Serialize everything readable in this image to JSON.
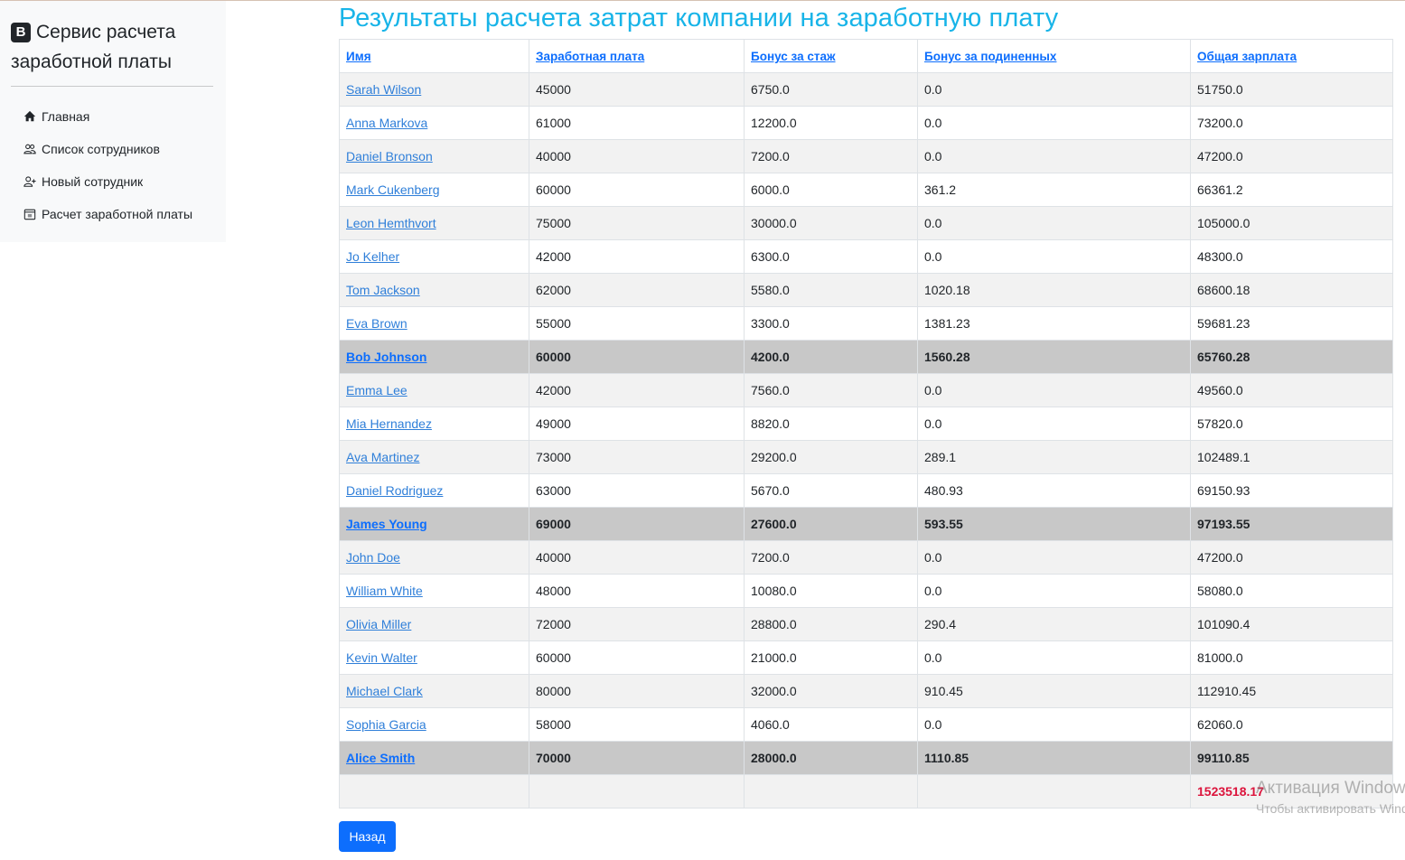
{
  "sidebar": {
    "brand_badge": "B",
    "brand_title": "Сервис расчета заработной платы",
    "items": [
      {
        "label": "Главная",
        "icon": "home-icon"
      },
      {
        "label": "Список сотрудников",
        "icon": "people-icon"
      },
      {
        "label": "Новый сотрудник",
        "icon": "person-add-icon"
      },
      {
        "label": "Расчет заработной платы",
        "icon": "calendar-icon"
      }
    ]
  },
  "page": {
    "title": "Результаты расчета затрат компании на заработную плату"
  },
  "table": {
    "headers": [
      "Имя",
      "Заработная плата",
      "Бонус за стаж",
      "Бонус за подиненных",
      "Общая зарплата"
    ],
    "rows": [
      {
        "name": "Sarah Wilson",
        "salary": "45000",
        "seniority": "6750.0",
        "subordinates": "0.0",
        "total": "51750.0",
        "highlight": false
      },
      {
        "name": "Anna Markova",
        "salary": "61000",
        "seniority": "12200.0",
        "subordinates": "0.0",
        "total": "73200.0",
        "highlight": false
      },
      {
        "name": "Daniel Bronson",
        "salary": "40000",
        "seniority": "7200.0",
        "subordinates": "0.0",
        "total": "47200.0",
        "highlight": false
      },
      {
        "name": "Mark Cukenberg",
        "salary": "60000",
        "seniority": "6000.0",
        "subordinates": "361.2",
        "total": "66361.2",
        "highlight": false
      },
      {
        "name": "Leon Hemthvort",
        "salary": "75000",
        "seniority": "30000.0",
        "subordinates": "0.0",
        "total": "105000.0",
        "highlight": false
      },
      {
        "name": "Jo Kelher",
        "salary": "42000",
        "seniority": "6300.0",
        "subordinates": "0.0",
        "total": "48300.0",
        "highlight": false
      },
      {
        "name": "Tom Jackson",
        "salary": "62000",
        "seniority": "5580.0",
        "subordinates": "1020.18",
        "total": "68600.18",
        "highlight": false
      },
      {
        "name": "Eva Brown",
        "salary": "55000",
        "seniority": "3300.0",
        "subordinates": "1381.23",
        "total": "59681.23",
        "highlight": false
      },
      {
        "name": "Bob Johnson",
        "salary": "60000",
        "seniority": "4200.0",
        "subordinates": "1560.28",
        "total": "65760.28",
        "highlight": true
      },
      {
        "name": "Emma Lee",
        "salary": "42000",
        "seniority": "7560.0",
        "subordinates": "0.0",
        "total": "49560.0",
        "highlight": false
      },
      {
        "name": "Mia Hernandez",
        "salary": "49000",
        "seniority": "8820.0",
        "subordinates": "0.0",
        "total": "57820.0",
        "highlight": false
      },
      {
        "name": "Ava Martinez",
        "salary": "73000",
        "seniority": "29200.0",
        "subordinates": "289.1",
        "total": "102489.1",
        "highlight": false
      },
      {
        "name": "Daniel Rodriguez",
        "salary": "63000",
        "seniority": "5670.0",
        "subordinates": "480.93",
        "total": "69150.93",
        "highlight": false
      },
      {
        "name": "James Young",
        "salary": "69000",
        "seniority": "27600.0",
        "subordinates": "593.55",
        "total": "97193.55",
        "highlight": true
      },
      {
        "name": "John Doe",
        "salary": "40000",
        "seniority": "7200.0",
        "subordinates": "0.0",
        "total": "47200.0",
        "highlight": false
      },
      {
        "name": "William White",
        "salary": "48000",
        "seniority": "10080.0",
        "subordinates": "0.0",
        "total": "58080.0",
        "highlight": false
      },
      {
        "name": "Olivia Miller",
        "salary": "72000",
        "seniority": "28800.0",
        "subordinates": "290.4",
        "total": "101090.4",
        "highlight": false
      },
      {
        "name": "Kevin Walter",
        "salary": "60000",
        "seniority": "21000.0",
        "subordinates": "0.0",
        "total": "81000.0",
        "highlight": false
      },
      {
        "name": "Michael Clark",
        "salary": "80000",
        "seniority": "32000.0",
        "subordinates": "910.45",
        "total": "112910.45",
        "highlight": false
      },
      {
        "name": "Sophia Garcia",
        "salary": "58000",
        "seniority": "4060.0",
        "subordinates": "0.0",
        "total": "62060.0",
        "highlight": false
      },
      {
        "name": "Alice Smith",
        "salary": "70000",
        "seniority": "28000.0",
        "subordinates": "1110.85",
        "total": "99110.85",
        "highlight": true
      }
    ],
    "grand_total": "1523518.17"
  },
  "back_button": "Назад",
  "watermark": {
    "line1": "Активация Windows",
    "line2": "Чтобы активировать Windows"
  },
  "colors": {
    "title": "#18b4e8",
    "link": "#2f7fd9",
    "button": "#0d6efd",
    "total": "#dc143c",
    "highlight_row": "#c8c8c8"
  }
}
